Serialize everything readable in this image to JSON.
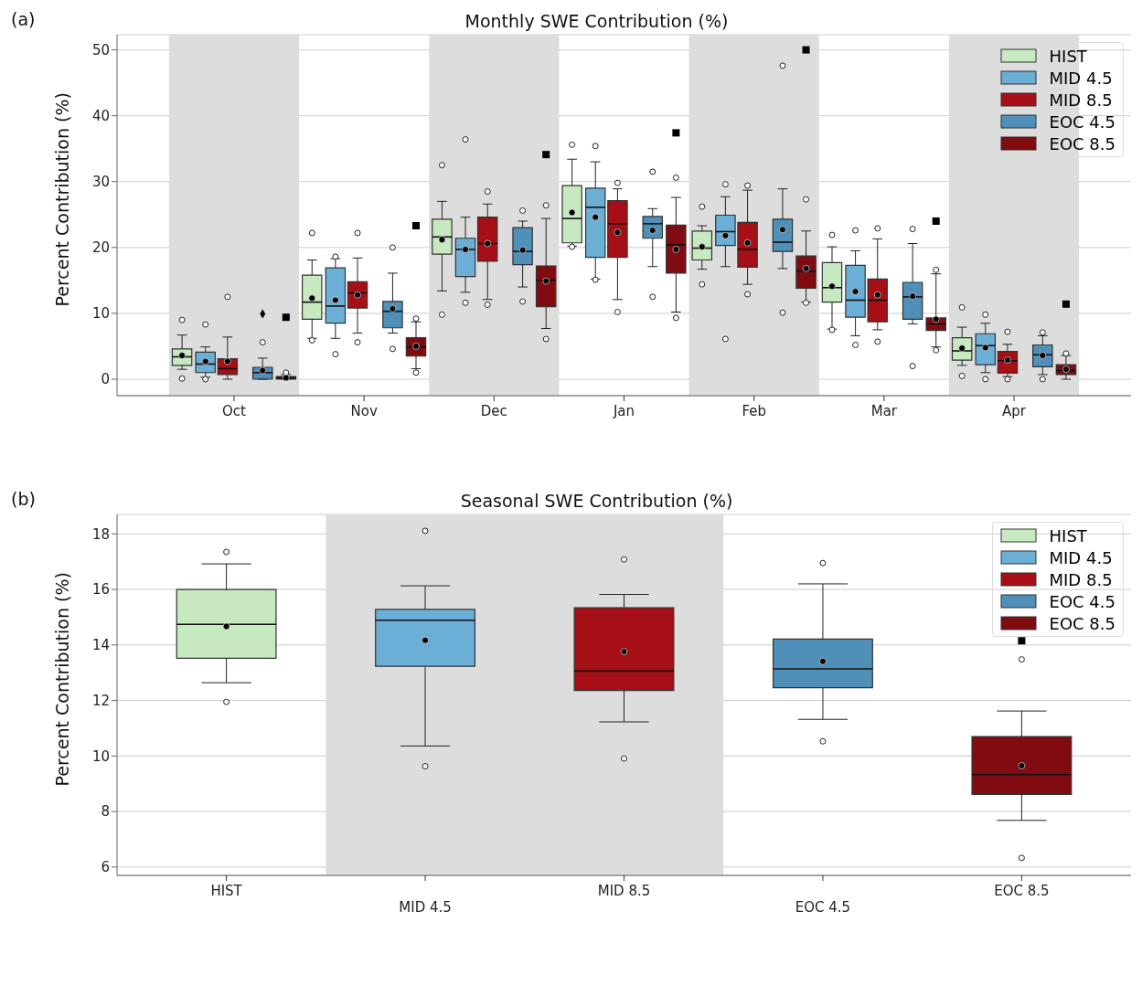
{
  "chart_data": [
    {
      "type": "box",
      "title": "Monthly SWE Contribution (%)",
      "ylabel": "Percent Contribution (%)",
      "annotations": [
        "(a)"
      ],
      "categories": [
        "Oct",
        "Nov",
        "Dec",
        "Jan",
        "Feb",
        "Mar",
        "Apr"
      ],
      "ylim": [
        -2.5,
        52.3
      ],
      "yticks": [
        0,
        10,
        20,
        30,
        40,
        50
      ],
      "grid": "y",
      "legend": "top right",
      "bands": [
        {
          "axis": "x",
          "from": "Oct",
          "to": "Oct",
          "color": "#dddddd"
        },
        {
          "axis": "x",
          "from": "Dec",
          "to": "Dec",
          "color": "#dddddd"
        },
        {
          "axis": "x",
          "from": "Feb",
          "to": "Feb",
          "color": "#dddddd"
        },
        {
          "axis": "x",
          "from": "Apr",
          "to": "Apr",
          "color": "#dddddd"
        }
      ],
      "series": [
        {
          "name": "HIST",
          "color": "#c7e9c0",
          "boxes": [
            {
              "low": 1.5,
              "q1": 2.1,
              "median": 3.4,
              "q3": 4.6,
              "high": 6.7,
              "mean": 3.6,
              "outliers": [
                9.0,
                0.1
              ]
            },
            {
              "low": 6.2,
              "q1": 9.1,
              "median": 11.7,
              "q3": 15.8,
              "high": 18.1,
              "mean": 12.3,
              "outliers": [
                22.2,
                5.9
              ]
            },
            {
              "low": 13.4,
              "q1": 19.0,
              "median": 21.6,
              "q3": 24.3,
              "high": 27.0,
              "mean": 21.2,
              "outliers": [
                32.5,
                9.8
              ]
            },
            {
              "low": 20.2,
              "q1": 20.7,
              "median": 24.4,
              "q3": 29.4,
              "high": 33.4,
              "mean": 25.3,
              "outliers": [
                35.6,
                20.1
              ]
            },
            {
              "low": 16.7,
              "q1": 18.1,
              "median": 19.9,
              "q3": 22.5,
              "high": 23.3,
              "mean": 20.1,
              "outliers": [
                26.2,
                14.4
              ]
            },
            {
              "low": 7.6,
              "q1": 11.7,
              "median": 13.9,
              "q3": 17.7,
              "high": 20.1,
              "mean": 14.1,
              "outliers": [
                21.9,
                7.5
              ]
            },
            {
              "low": 2.1,
              "q1": 2.9,
              "median": 4.3,
              "q3": 6.3,
              "high": 7.9,
              "mean": 4.7,
              "outliers": [
                10.9,
                0.5
              ]
            }
          ]
        },
        {
          "name": "MID 4.5",
          "color": "#6baed6",
          "boxes": [
            {
              "low": 0.3,
              "q1": 1.0,
              "median": 2.3,
              "q3": 4.1,
              "high": 4.9,
              "mean": 2.7,
              "outliers": [
                8.3,
                0
              ]
            },
            {
              "low": 6.2,
              "q1": 8.5,
              "median": 11.1,
              "q3": 16.9,
              "high": 18.3,
              "mean": 12.0,
              "outliers": [
                18.6,
                3.8
              ]
            },
            {
              "low": 13.2,
              "q1": 15.6,
              "median": 19.7,
              "q3": 21.4,
              "high": 24.6,
              "mean": 19.7,
              "outliers": [
                36.4,
                11.6
              ]
            },
            {
              "low": 15.2,
              "q1": 18.5,
              "median": 26.1,
              "q3": 29.0,
              "high": 33.0,
              "mean": 24.6,
              "outliers": [
                35.4,
                15.1
              ]
            },
            {
              "low": 17.1,
              "q1": 20.3,
              "median": 22.4,
              "q3": 24.9,
              "high": 27.7,
              "mean": 21.8,
              "outliers": [
                29.6,
                6.1
              ]
            },
            {
              "low": 6.6,
              "q1": 9.4,
              "median": 12.0,
              "q3": 17.3,
              "high": 19.5,
              "mean": 13.3,
              "outliers": [
                22.6,
                5.2
              ]
            },
            {
              "low": 1.0,
              "q1": 2.2,
              "median": 5.1,
              "q3": 6.9,
              "high": 8.5,
              "mean": 4.8,
              "outliers": [
                9.8,
                0
              ]
            }
          ]
        },
        {
          "name": "MID 8.5",
          "color": "#a50f15",
          "boxes": [
            {
              "low": 0,
              "q1": 0.7,
              "median": 1.6,
              "q3": 3.1,
              "high": 6.4,
              "mean": 2.7,
              "outliers": [
                12.5
              ]
            },
            {
              "low": 7.0,
              "q1": 10.8,
              "median": 13.1,
              "q3": 14.8,
              "high": 18.4,
              "mean": 12.8,
              "outliers": [
                22.2,
                5.6
              ]
            },
            {
              "low": 12.1,
              "q1": 17.9,
              "median": 20.6,
              "q3": 24.6,
              "high": 26.6,
              "mean": 20.6,
              "outliers": [
                28.5,
                11.3
              ]
            },
            {
              "low": 12.1,
              "q1": 18.5,
              "median": 23.6,
              "q3": 27.1,
              "high": 28.9,
              "mean": 22.3,
              "outliers": [
                29.8,
                10.2
              ]
            },
            {
              "low": 14.4,
              "q1": 17.0,
              "median": 19.7,
              "q3": 23.8,
              "high": 28.7,
              "mean": 20.7,
              "outliers": [
                29.4,
                12.9
              ]
            },
            {
              "low": 7.5,
              "q1": 8.7,
              "median": 12.0,
              "q3": 15.2,
              "high": 21.3,
              "mean": 12.8,
              "outliers": [
                22.9,
                5.7
              ]
            },
            {
              "low": 0.4,
              "q1": 0.9,
              "median": 2.8,
              "q3": 4.2,
              "high": 5.3,
              "mean": 2.9,
              "outliers": [
                7.2,
                0
              ]
            }
          ]
        },
        {
          "name": "EOC 4.5",
          "color": "#4f8fb8",
          "boxes": [
            {
              "low": 0,
              "q1": 0,
              "median": 1.0,
              "q3": 1.8,
              "high": 3.2,
              "mean": 1.3,
              "outliers": [
                5.6
              ]
            },
            {
              "low": 7.0,
              "q1": 7.8,
              "median": 10.3,
              "q3": 11.8,
              "high": 16.1,
              "mean": 10.7,
              "outliers": [
                20.0,
                4.6
              ]
            },
            {
              "low": 14.0,
              "q1": 17.4,
              "median": 19.4,
              "q3": 23.0,
              "high": 24.0,
              "mean": 19.6,
              "outliers": [
                25.6,
                11.8
              ]
            },
            {
              "low": 17.1,
              "q1": 21.4,
              "median": 23.6,
              "q3": 24.7,
              "high": 25.9,
              "mean": 22.6,
              "outliers": [
                31.5,
                12.5
              ]
            },
            {
              "low": 16.8,
              "q1": 19.4,
              "median": 20.8,
              "q3": 24.3,
              "high": 28.9,
              "mean": 22.7,
              "outliers": [
                47.6,
                10.1
              ]
            },
            {
              "low": 8.4,
              "q1": 9.1,
              "median": 12.5,
              "q3": 14.7,
              "high": 20.6,
              "mean": 12.6,
              "outliers": [
                22.8,
                2.0
              ]
            },
            {
              "low": 0.7,
              "q1": 1.9,
              "median": 3.7,
              "q3": 5.2,
              "high": 6.6,
              "mean": 3.6,
              "outliers": [
                7.1,
                0
              ]
            }
          ]
        },
        {
          "type": "scatter",
          "marker": "diamond",
          "color": "#000000",
          "x": [
            "Oct"
          ],
          "values": [
            9.9
          ]
        },
        {
          "name": "EOC 8.5",
          "color": "#800b10",
          "boxes": [
            {
              "low": 0,
              "q1": 0,
              "median": 0.2,
              "q3": 0.4,
              "high": 0.7,
              "mean": 0.2,
              "outliers": [
                1.0
              ]
            },
            {
              "low": 1.6,
              "q1": 3.5,
              "median": 4.9,
              "q3": 6.3,
              "high": 8.7,
              "mean": 5.0,
              "outliers": [
                9.2,
                1.0
              ]
            },
            {
              "low": 7.7,
              "q1": 11.0,
              "median": 15.0,
              "q3": 17.2,
              "high": 24.4,
              "mean": 14.9,
              "outliers": [
                26.4,
                6.1
              ]
            },
            {
              "low": 10.2,
              "q1": 16.1,
              "median": 20.4,
              "q3": 23.4,
              "high": 27.6,
              "mean": 19.7,
              "outliers": [
                30.6,
                9.3
              ]
            },
            {
              "low": 11.7,
              "q1": 13.8,
              "median": 16.4,
              "q3": 18.7,
              "high": 22.5,
              "mean": 16.8,
              "outliers": [
                27.3,
                11.6
              ]
            },
            {
              "low": 4.9,
              "q1": 7.4,
              "median": 8.4,
              "q3": 9.3,
              "high": 16.0,
              "mean": 9.1,
              "outliers": [
                16.6,
                4.4
              ]
            },
            {
              "low": 0,
              "q1": 0.7,
              "median": 1.3,
              "q3": 2.2,
              "high": 3.6,
              "mean": 1.5,
              "outliers": [
                3.9
              ]
            }
          ]
        },
        {
          "type": "scatter",
          "marker": "square",
          "color": "#000000",
          "x": [
            "Oct",
            "Nov",
            "Dec",
            "Jan",
            "Feb",
            "Mar",
            "Apr"
          ],
          "values": [
            9.4,
            23.3,
            34.1,
            37.4,
            50.0,
            24.0,
            11.4
          ]
        }
      ]
    },
    {
      "type": "box",
      "title": "Seasonal SWE Contribution (%)",
      "ylabel": "Percent Contribution (%)",
      "annotations": [
        "(b)"
      ],
      "categories": [
        "HIST",
        "MID 4.5",
        "MID 8.5",
        "EOC 4.5",
        "EOC 8.5"
      ],
      "ylim": [
        5.7,
        18.7
      ],
      "yticks": [
        6,
        8,
        10,
        12,
        14,
        16,
        18
      ],
      "grid": "y",
      "legend": "top right",
      "bands": [
        {
          "axis": "x",
          "from": "MID 4.5",
          "to": "MID 8.5",
          "color": "#dddddd"
        }
      ],
      "series": [
        {
          "name": "HIST",
          "color": "#c7e9c0",
          "boxes": [
            {
              "low": 12.64,
              "q1": 13.52,
              "median": 14.74,
              "q3": 16.0,
              "high": 16.92,
              "mean": 14.67,
              "outliers": [
                17.35,
                11.95
              ]
            },
            null,
            null,
            null,
            null
          ]
        },
        {
          "name": "MID 4.5",
          "color": "#6baed6",
          "boxes": [
            null,
            {
              "low": 10.36,
              "q1": 13.23,
              "median": 14.89,
              "q3": 15.28,
              "high": 16.13,
              "mean": 14.17,
              "outliers": [
                18.11,
                9.63
              ]
            },
            null,
            null,
            null
          ]
        },
        {
          "name": "MID 8.5",
          "color": "#a50f15",
          "boxes": [
            null,
            null,
            {
              "low": 11.23,
              "q1": 12.36,
              "median": 13.06,
              "q3": 15.34,
              "high": 15.82,
              "mean": 13.76,
              "outliers": [
                17.08,
                9.91
              ]
            },
            null,
            null
          ]
        },
        {
          "name": "EOC 4.5",
          "color": "#4f8fb8",
          "boxes": [
            null,
            null,
            null,
            {
              "low": 11.32,
              "q1": 12.46,
              "median": 13.14,
              "q3": 14.21,
              "high": 16.2,
              "mean": 13.41,
              "outliers": [
                16.95,
                10.53
              ]
            },
            null
          ]
        },
        {
          "name": "EOC 8.5",
          "color": "#800b10",
          "boxes": [
            null,
            null,
            null,
            null,
            {
              "low": 7.68,
              "q1": 8.62,
              "median": 9.33,
              "q3": 10.7,
              "high": 11.62,
              "mean": 9.65,
              "outliers": [
                13.48,
                6.33
              ]
            }
          ]
        },
        {
          "type": "scatter",
          "marker": "square",
          "color": "#000000",
          "x": [
            "EOC 8.5"
          ],
          "values": [
            14.15
          ]
        }
      ]
    }
  ]
}
